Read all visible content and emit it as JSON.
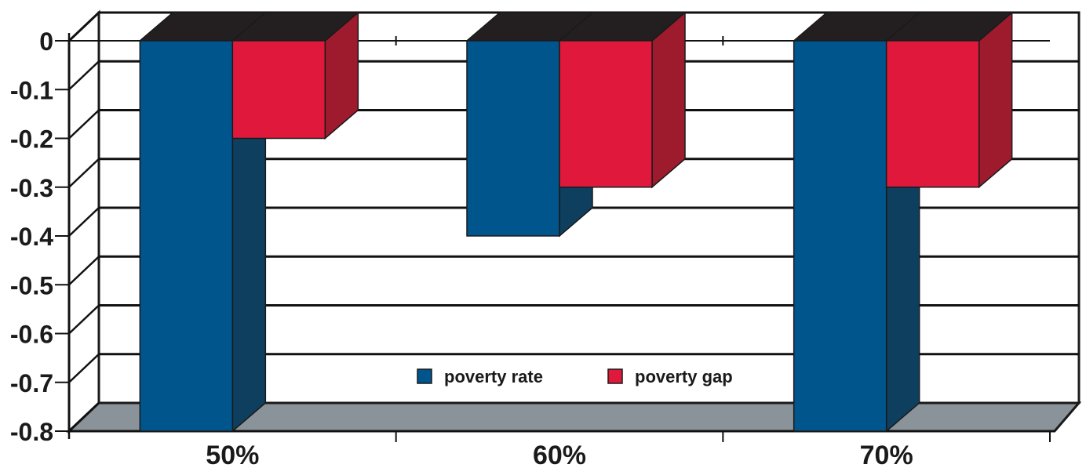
{
  "chart_data": {
    "type": "bar",
    "categories": [
      "50%",
      "60%",
      "70%"
    ],
    "series": [
      {
        "name": "poverty rate",
        "values": [
          -0.8,
          -0.4,
          -0.8
        ],
        "color": "#00558c"
      },
      {
        "name": "poverty gap",
        "values": [
          -0.2,
          -0.3,
          -0.3
        ],
        "color": "#e0193c"
      }
    ],
    "ylim": [
      -0.8,
      0
    ],
    "yticks": [
      "0",
      "-0.1",
      "-0.2",
      "-0.3",
      "-0.4",
      "-0.5",
      "-0.6",
      "-0.7",
      "-0.8"
    ],
    "grid": true,
    "legend_placement": "bottom-center",
    "three_d": true,
    "colors": {
      "floor": "#8a9399",
      "bar_top": "#231f20",
      "rate_side": "#0e3f5e",
      "gap_side": "#9e1b2e"
    }
  }
}
